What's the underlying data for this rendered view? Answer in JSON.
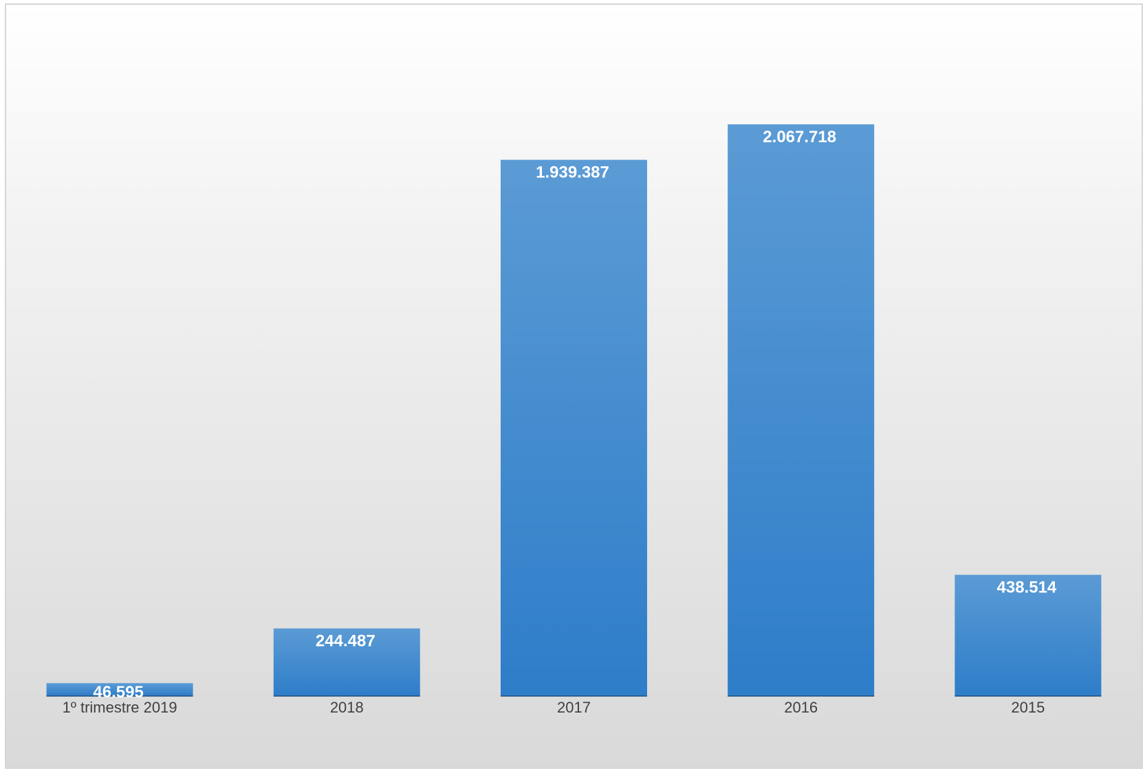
{
  "chart_data": {
    "type": "bar",
    "categories": [
      "1º trimestre 2019",
      "2018",
      "2017",
      "2016",
      "2015"
    ],
    "values": [
      46595,
      244487,
      1939387,
      2067718,
      438514
    ],
    "value_labels": [
      "46.595",
      "244.487",
      "1.939.387",
      "2.067.718",
      "438.514"
    ],
    "title": "",
    "xlabel": "",
    "ylabel": "",
    "ylim": [
      0,
      2500000
    ],
    "grid": false,
    "legend": "none"
  },
  "colors": {
    "bar_top": "#5b9bd5",
    "bar_bottom": "#2e7dc9",
    "bar_baseline": "#1f4e79"
  }
}
